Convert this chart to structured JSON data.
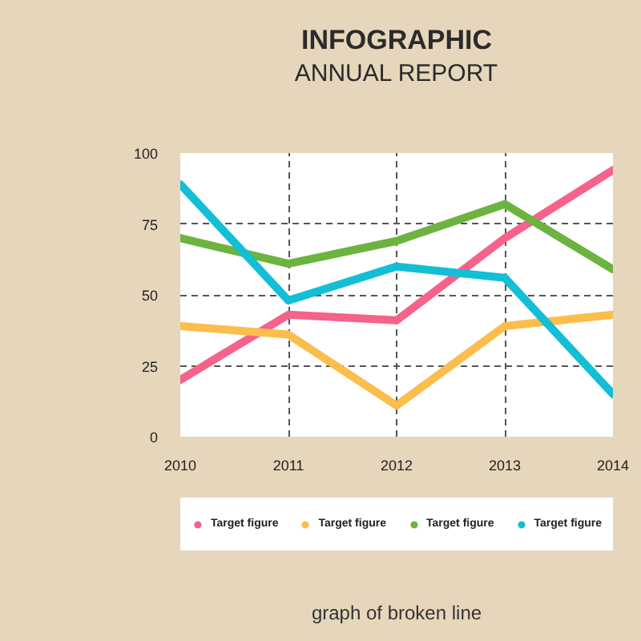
{
  "chart_data": {
    "type": "line",
    "title": "INFOGRAPHIC",
    "subtitle": "ANNUAL REPORT",
    "annotations": [
      "graph of broken line"
    ],
    "x": [
      2010,
      2011,
      2012,
      2013,
      2014
    ],
    "xlim": [
      2010,
      2014
    ],
    "xticks": [
      2010,
      2011,
      2012,
      2013,
      2014
    ],
    "ylim": [
      0,
      100
    ],
    "yticks": [
      0,
      25,
      50,
      75,
      100
    ],
    "grid": true,
    "legend": "bottom",
    "line_style": "solid",
    "series": [
      {
        "name": "Target figure",
        "color": "#f5628a",
        "values": [
          20,
          43,
          41,
          70,
          94
        ]
      },
      {
        "name": "Target figure",
        "color": "#fbbd4c",
        "values": [
          39,
          36,
          11,
          39,
          43
        ]
      },
      {
        "name": "Target figure",
        "color": "#6db33f",
        "values": [
          70,
          61,
          69,
          82,
          59
        ]
      },
      {
        "name": "Target figure",
        "color": "#13bfd4",
        "values": [
          89,
          48,
          60,
          56,
          15
        ]
      }
    ]
  }
}
